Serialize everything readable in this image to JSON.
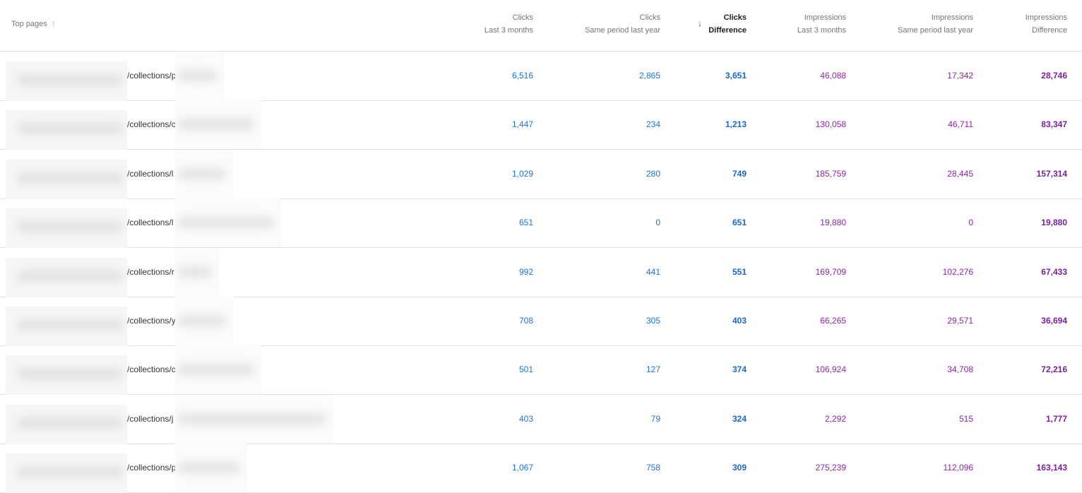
{
  "header": {
    "top_pages": "Top pages",
    "columns": [
      {
        "line1": "Clicks",
        "line2": "Last 3 months"
      },
      {
        "line1": "Clicks",
        "line2": "Same period last year"
      },
      {
        "line1": "Clicks",
        "line2": "Difference"
      },
      {
        "line1": "Impressions",
        "line2": "Last 3 months"
      },
      {
        "line1": "Impressions",
        "line2": "Same period last year"
      },
      {
        "line1": "Impressions",
        "line2": "Difference"
      }
    ],
    "sorted_column": "Clicks Difference",
    "sort_direction": "descending"
  },
  "colors": {
    "clicks": "#1a73e8",
    "impressions": "#8e24aa"
  },
  "rows": [
    {
      "path": "/collections/p",
      "c1": "6,516",
      "c2": "2,865",
      "c3": "3,651",
      "i1": "46,088",
      "i2": "17,342",
      "i3": "28,746"
    },
    {
      "path": "/collections/c",
      "c1": "1,447",
      "c2": "234",
      "c3": "1,213",
      "i1": "130,058",
      "i2": "46,711",
      "i3": "83,347"
    },
    {
      "path": "/collections/l",
      "c1": "1,029",
      "c2": "280",
      "c3": "749",
      "i1": "185,759",
      "i2": "28,445",
      "i3": "157,314"
    },
    {
      "path": "/collections/l",
      "c1": "651",
      "c2": "0",
      "c3": "651",
      "i1": "19,880",
      "i2": "0",
      "i3": "19,880"
    },
    {
      "path": "/collections/r",
      "c1": "992",
      "c2": "441",
      "c3": "551",
      "i1": "169,709",
      "i2": "102,276",
      "i3": "67,433"
    },
    {
      "path": "/collections/y",
      "c1": "708",
      "c2": "305",
      "c3": "403",
      "i1": "66,265",
      "i2": "29,571",
      "i3": "36,694"
    },
    {
      "path": "/collections/c",
      "c1": "501",
      "c2": "127",
      "c3": "374",
      "i1": "106,924",
      "i2": "34,708",
      "i3": "72,216"
    },
    {
      "path": "/collections/j",
      "c1": "403",
      "c2": "79",
      "c3": "324",
      "i1": "2,292",
      "i2": "515",
      "i3": "1,777"
    },
    {
      "path": "/collections/p",
      "c1": "1,067",
      "c2": "758",
      "c3": "309",
      "i1": "275,239",
      "i2": "112,096",
      "i3": "163,143"
    }
  ]
}
